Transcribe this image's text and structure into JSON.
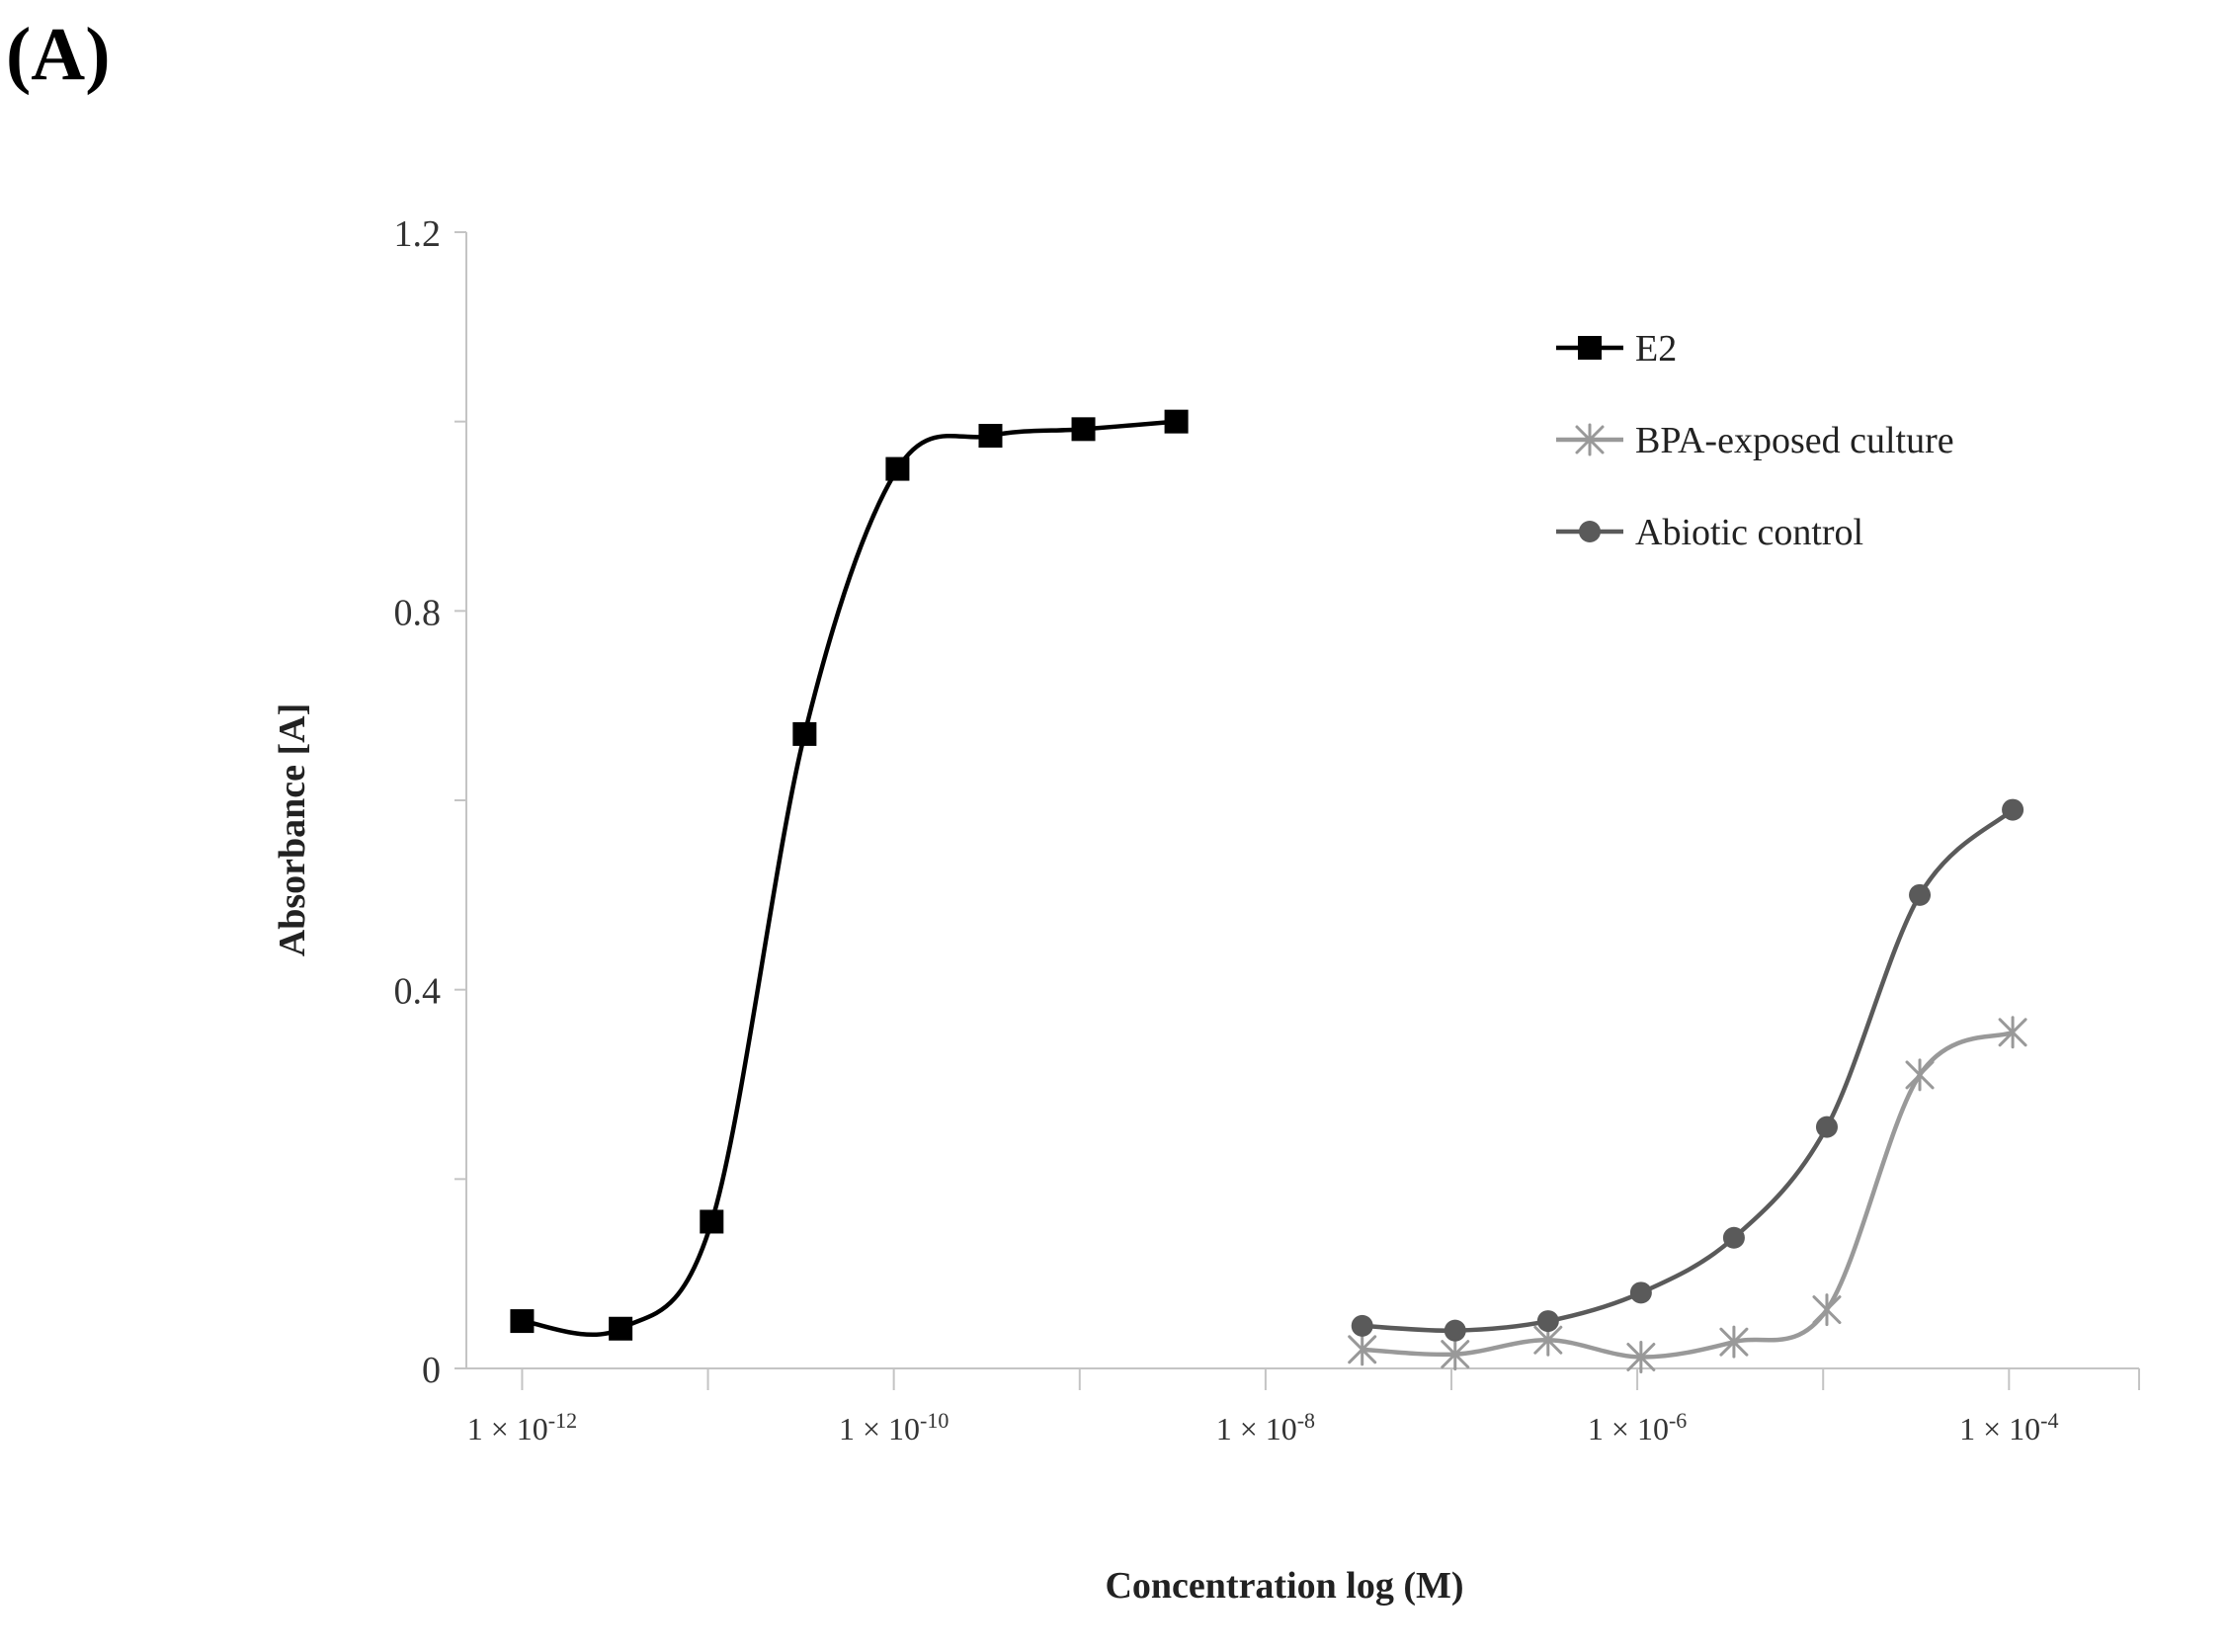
{
  "panel_label": "(A)",
  "chart_data": {
    "type": "line",
    "xlabel": "Concentration log (M)",
    "ylabel": "Absorbance [A]",
    "x_scale": "log10",
    "xlim_log10": [
      -12.3,
      -3.3
    ],
    "ylim": [
      0,
      1.2
    ],
    "y_ticks": [
      {
        "value": 0,
        "label": "0"
      },
      {
        "value": 0.4,
        "label": "0.4"
      },
      {
        "value": 0.8,
        "label": "0.8"
      },
      {
        "value": 1.2,
        "label": "1.2"
      }
    ],
    "y_minor_ticks": [
      0.2,
      0.6,
      1.0
    ],
    "x_ticks": [
      {
        "log10": -12,
        "base": "1 × 10",
        "exp": "-12"
      },
      {
        "log10": -10,
        "base": "1 × 10",
        "exp": "-10"
      },
      {
        "log10": -8,
        "base": "1 × 10",
        "exp": "-8"
      },
      {
        "log10": -6,
        "base": "1 × 10",
        "exp": "-6"
      },
      {
        "log10": -4,
        "base": "1 × 10",
        "exp": "-4"
      }
    ],
    "x_minor_ticks_log10": [
      -11,
      -9,
      -7,
      -5,
      -3.3
    ],
    "legend_position": "top-right",
    "series": [
      {
        "name": "E2",
        "color": "#000000",
        "marker": "square",
        "log10_x": [
          -12.0,
          -11.47,
          -10.98,
          -10.48,
          -9.98,
          -9.48,
          -8.98,
          -8.48
        ],
        "y": [
          0.05,
          0.042,
          0.155,
          0.67,
          0.95,
          0.985,
          0.992,
          1.0
        ]
      },
      {
        "name": "BPA-exposed culture",
        "color": "#999999",
        "marker": "asterisk",
        "log10_x": [
          -7.48,
          -6.98,
          -6.48,
          -5.98,
          -5.48,
          -4.98,
          -4.48,
          -3.98
        ],
        "y": [
          0.02,
          0.015,
          0.03,
          0.012,
          0.028,
          0.062,
          0.31,
          0.355
        ]
      },
      {
        "name": "Abiotic control",
        "color": "#5a5a5a",
        "marker": "circle",
        "log10_x": [
          -7.48,
          -6.98,
          -6.48,
          -5.98,
          -5.48,
          -4.98,
          -4.48,
          -3.98
        ],
        "y": [
          0.045,
          0.04,
          0.05,
          0.08,
          0.138,
          0.255,
          0.5,
          0.59
        ]
      }
    ]
  }
}
